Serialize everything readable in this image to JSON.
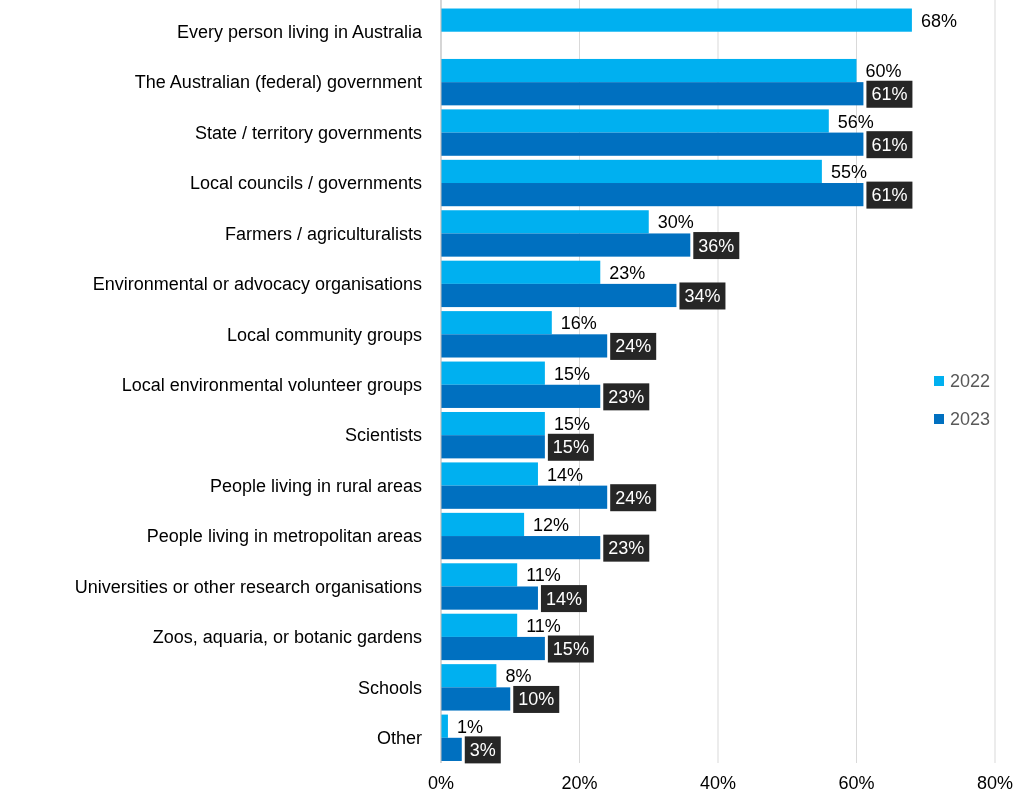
{
  "chart_data": {
    "type": "bar",
    "orientation": "horizontal",
    "categories": [
      "Every person living in Australia",
      "The Australian (federal) government",
      "State / territory governments",
      "Local councils / governments",
      "Farmers / agriculturalists",
      "Environmental or advocacy organisations",
      "Local community groups",
      "Local environmental volunteer groups",
      "Scientists",
      "People living in rural areas",
      "People living in metropolitan areas",
      "Universities or other research organisations",
      "Zoos, aquaria, or botanic gardens",
      "Schools",
      "Other"
    ],
    "series": [
      {
        "name": "2022",
        "color": "#00b0f0",
        "values": [
          68,
          60,
          56,
          55,
          30,
          23,
          16,
          15,
          15,
          14,
          12,
          11,
          11,
          8,
          1
        ],
        "value_labels": [
          "68%",
          "60%",
          "56%",
          "55%",
          "30%",
          "23%",
          "16%",
          "15%",
          "15%",
          "14%",
          "12%",
          "11%",
          "11%",
          "8%",
          "1%"
        ]
      },
      {
        "name": "2023",
        "color": "#0070c0",
        "values": [
          null,
          61,
          61,
          61,
          36,
          34,
          24,
          23,
          15,
          24,
          23,
          14,
          15,
          10,
          3
        ],
        "value_labels": [
          null,
          "61%",
          "61%",
          "61%",
          "36%",
          "34%",
          "24%",
          "23%",
          "15%",
          "24%",
          "23%",
          "14%",
          "15%",
          "10%",
          "3%"
        ]
      }
    ],
    "xlim": [
      0,
      80
    ],
    "xticks": [
      {
        "value": 0,
        "label": "0%"
      },
      {
        "value": 20,
        "label": "20%"
      },
      {
        "value": 40,
        "label": "40%"
      },
      {
        "value": 60,
        "label": "60%"
      },
      {
        "value": 80,
        "label": "80%"
      }
    ],
    "grid": "x",
    "legend": "right"
  }
}
